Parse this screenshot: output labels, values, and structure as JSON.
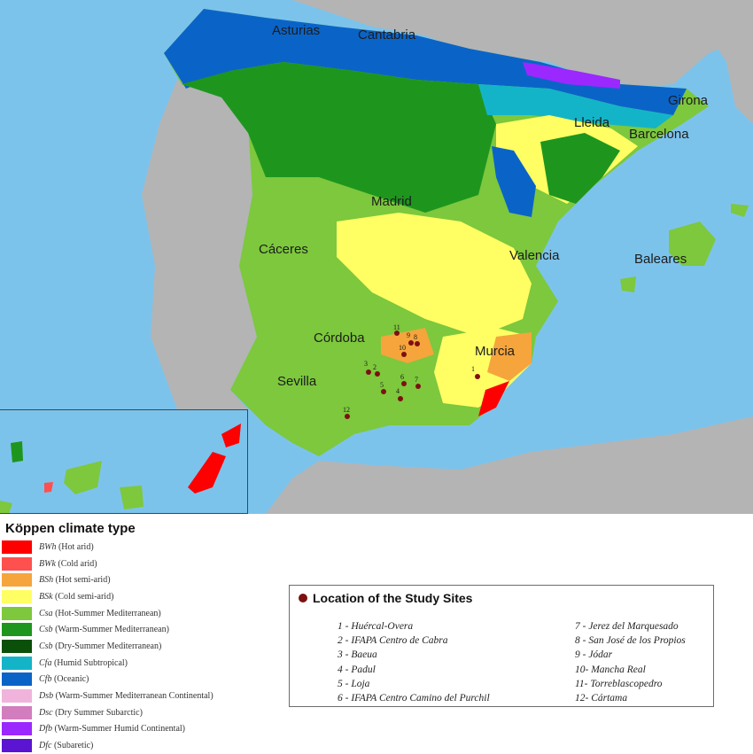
{
  "map": {
    "region_labels": [
      {
        "id": "asturias",
        "text": "Asturias"
      },
      {
        "id": "cantabria",
        "text": "Cantabria"
      },
      {
        "id": "girona",
        "text": "Girona"
      },
      {
        "id": "lleida",
        "text": "Lleida"
      },
      {
        "id": "barcelona",
        "text": "Barcelona"
      },
      {
        "id": "madrid",
        "text": "Madrid"
      },
      {
        "id": "caceres",
        "text": "Cáceres"
      },
      {
        "id": "valencia",
        "text": "Valencia"
      },
      {
        "id": "baleares",
        "text": "Baleares"
      },
      {
        "id": "cordoba",
        "text": "Córdoba"
      },
      {
        "id": "murcia",
        "text": "Murcia"
      },
      {
        "id": "sevilla",
        "text": "Sevilla"
      }
    ],
    "site_numbers": [
      "1",
      "2",
      "3",
      "4",
      "5",
      "6",
      "7",
      "8",
      "9",
      "10",
      "11",
      "12"
    ],
    "colors": {
      "sea": "#7cc3ec",
      "land_outside": "#b4b4b4",
      "site_marker": "#7d1010"
    }
  },
  "legend": {
    "title": "Köppen climate type",
    "items": [
      {
        "code": "BWh",
        "desc": "(Hot arid)",
        "color": "#ff0000"
      },
      {
        "code": "BWk",
        "desc": "(Cold arid)",
        "color": "#ff5050"
      },
      {
        "code": "BSh",
        "desc": "(Hot semi-arid)",
        "color": "#f5a53c"
      },
      {
        "code": "BSk",
        "desc": "(Cold semi-arid)",
        "color": "#ffff64"
      },
      {
        "code": "Csa",
        "desc": "(Hot-Summer Mediterranean)",
        "color": "#7dc83c"
      },
      {
        "code": "Csb",
        "desc": "(Warm-Summer Mediterranean)",
        "color": "#1e961e"
      },
      {
        "code": "Csb",
        "desc": "(Dry-Summer Mediterranean)",
        "color": "#0a500a"
      },
      {
        "code": "Cfa",
        "desc": "(Humid Subtropical)",
        "color": "#14b4c8"
      },
      {
        "code": "Cfb",
        "desc": "(Oceanic)",
        "color": "#0a64c8"
      },
      {
        "code": "Dsb",
        "desc": "(Warm-Summer Mediterranean Continental)",
        "color": "#f0b4dc"
      },
      {
        "code": "Dsc",
        "desc": "(Dry Summer Subarctic)",
        "color": "#d27dbe"
      },
      {
        "code": "Dfb",
        "desc": "(Warm-Summer Humid Continental)",
        "color": "#9b28ff"
      },
      {
        "code": "Dfc",
        "desc": "(Subaretic)",
        "color": "#5a14d2"
      }
    ]
  },
  "study_sites": {
    "title": "Location of the Study Sites",
    "left_column": [
      "1 - Huércal-Overa",
      "2 - IFAPA Centro de Cabra",
      "3 - Baeua",
      "4 - Padul",
      "5 - Loja",
      "6 - IFAPA Centro Camino del Purchil"
    ],
    "right_column": [
      "7 - Jerez del Marquesado",
      "8 - San José de los Propios",
      "9 - Jódar",
      "10- Mancha Real",
      "11- Torreblascopedro",
      "12- Cártama"
    ]
  }
}
